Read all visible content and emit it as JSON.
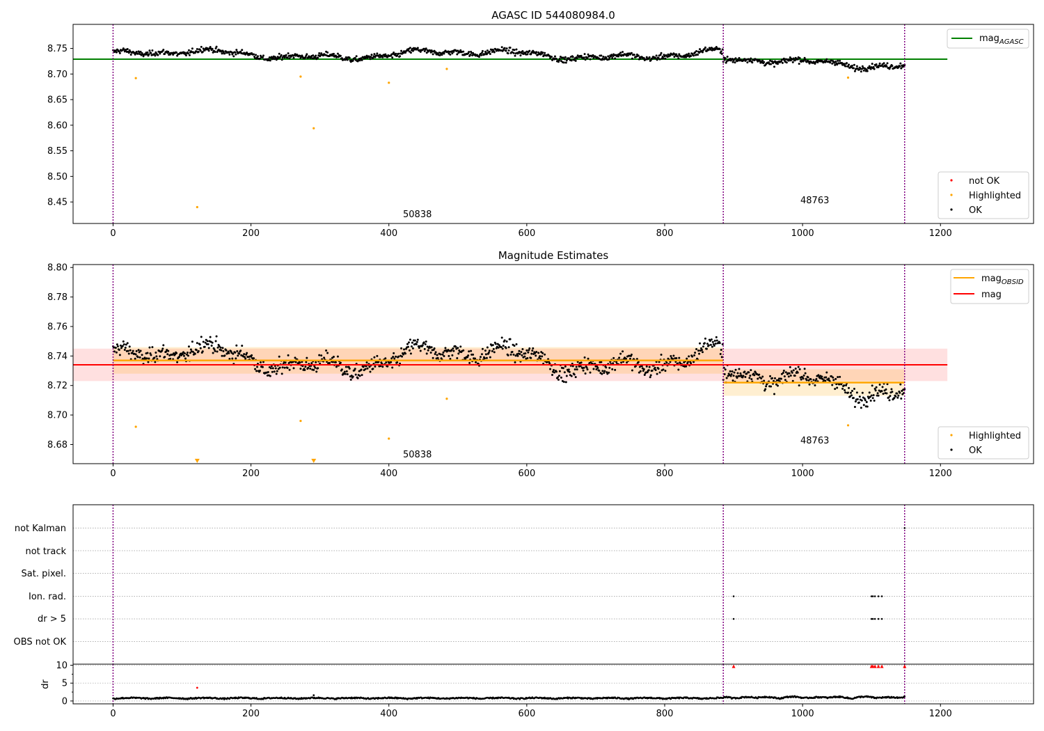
{
  "chart_data": [
    {
      "type": "scatter",
      "title": "AGASC ID 544080984.0",
      "xlim": [
        -58,
        1335
      ],
      "ylim": [
        8.408,
        8.797
      ],
      "xticks": [
        0,
        200,
        400,
        600,
        800,
        1000,
        1200
      ],
      "yticks": [
        8.45,
        8.5,
        8.55,
        8.6,
        8.65,
        8.7,
        8.75
      ],
      "vlines": [
        0,
        885,
        1148
      ],
      "mag_agasc": 8.729,
      "obsid_labels": [
        {
          "text": "50838",
          "x": 442,
          "y": 8.42
        },
        {
          "text": "48763",
          "x": 1017,
          "y": 8.452
        }
      ],
      "highlighted": [
        {
          "x": 33,
          "y": 8.692
        },
        {
          "x": 122,
          "y": 8.44
        },
        {
          "x": 272,
          "y": 8.695
        },
        {
          "x": 291,
          "y": 8.594
        },
        {
          "x": 400,
          "y": 8.683
        },
        {
          "x": 484,
          "y": 8.71
        },
        {
          "x": 1066,
          "y": 8.693
        }
      ],
      "segments": [
        {
          "x0": 0,
          "x1": 885,
          "base": 8.738
        },
        {
          "x0": 885,
          "x1": 1148,
          "base": 8.722
        }
      ],
      "legend_lines": [
        {
          "label": "mag",
          "sub": "AGASC",
          "color": "#008000"
        }
      ],
      "legend_points": [
        {
          "label": "not OK",
          "color": "#ff0000"
        },
        {
          "label": "Highlighted",
          "color": "#ffa500"
        },
        {
          "label": "OK",
          "color": "#000000"
        }
      ]
    },
    {
      "type": "scatter",
      "title": "Magnitude Estimates",
      "xlim": [
        -58,
        1335
      ],
      "ylim": [
        8.667,
        8.802
      ],
      "xticks": [
        0,
        200,
        400,
        600,
        800,
        1000,
        1200
      ],
      "yticks": [
        8.68,
        8.7,
        8.72,
        8.74,
        8.76,
        8.78,
        8.8
      ],
      "vlines": [
        0,
        885,
        1148
      ],
      "mag": 8.734,
      "mag_band": [
        8.723,
        8.745
      ],
      "mag_obsid": [
        {
          "x0": 0,
          "x1": 885,
          "value": 8.737,
          "band": [
            8.728,
            8.746
          ]
        },
        {
          "x0": 885,
          "x1": 1148,
          "value": 8.722,
          "band": [
            8.713,
            8.731
          ]
        }
      ],
      "obsid_labels": [
        {
          "text": "50838",
          "x": 442,
          "y": 8.672
        },
        {
          "text": "48763",
          "x": 1017,
          "y": 8.682
        }
      ],
      "highlighted": [
        {
          "x": 33,
          "y": 8.692
        },
        {
          "x": 272,
          "y": 8.696
        },
        {
          "x": 400,
          "y": 8.684
        },
        {
          "x": 484,
          "y": 8.711
        },
        {
          "x": 1066,
          "y": 8.693
        }
      ],
      "off_scale_low_x": [
        122,
        291
      ],
      "legend_lines": [
        {
          "label": "mag",
          "sub": "OBSID",
          "color": "#ffa500"
        },
        {
          "label": "mag",
          "sub": "",
          "color": "#ff0000"
        }
      ],
      "legend_points": [
        {
          "label": "Highlighted",
          "color": "#ffa500"
        },
        {
          "label": "OK",
          "color": "#000000"
        }
      ]
    },
    {
      "type": "scatter",
      "xlim": [
        -58,
        1335
      ],
      "vlines": [
        0,
        885,
        1148
      ],
      "flag_rows": [
        "not Kalman",
        "not track",
        "Sat. pixel.",
        "Ion. rad.",
        "dr > 5",
        "OBS not OK"
      ],
      "flag_points": [
        {
          "row": "Ion. rad.",
          "x": [
            900,
            1100,
            1102,
            1105,
            1110,
            1115
          ]
        },
        {
          "row": "dr > 5",
          "x": [
            900,
            1100,
            1102,
            1105,
            1110,
            1115
          ]
        },
        {
          "row": "not Kalman",
          "x": [
            1148
          ]
        }
      ]
    },
    {
      "type": "scatter",
      "ylabel": "dr",
      "xlim": [
        -58,
        1335
      ],
      "ylim": [
        -0.8,
        10.3
      ],
      "xticks": [
        0,
        200,
        400,
        600,
        800,
        1000,
        1200
      ],
      "yticks": [
        0,
        5,
        10
      ],
      "vlines": [
        0,
        885,
        1148
      ],
      "outliers": [
        {
          "x": 122,
          "y": 3.7,
          "color": "#ff0000"
        },
        {
          "x": 291,
          "y": 1.6,
          "color": "#000000"
        }
      ],
      "off_scale_high_x": [
        900,
        1100,
        1102,
        1105,
        1110,
        1115,
        1148
      ]
    }
  ]
}
